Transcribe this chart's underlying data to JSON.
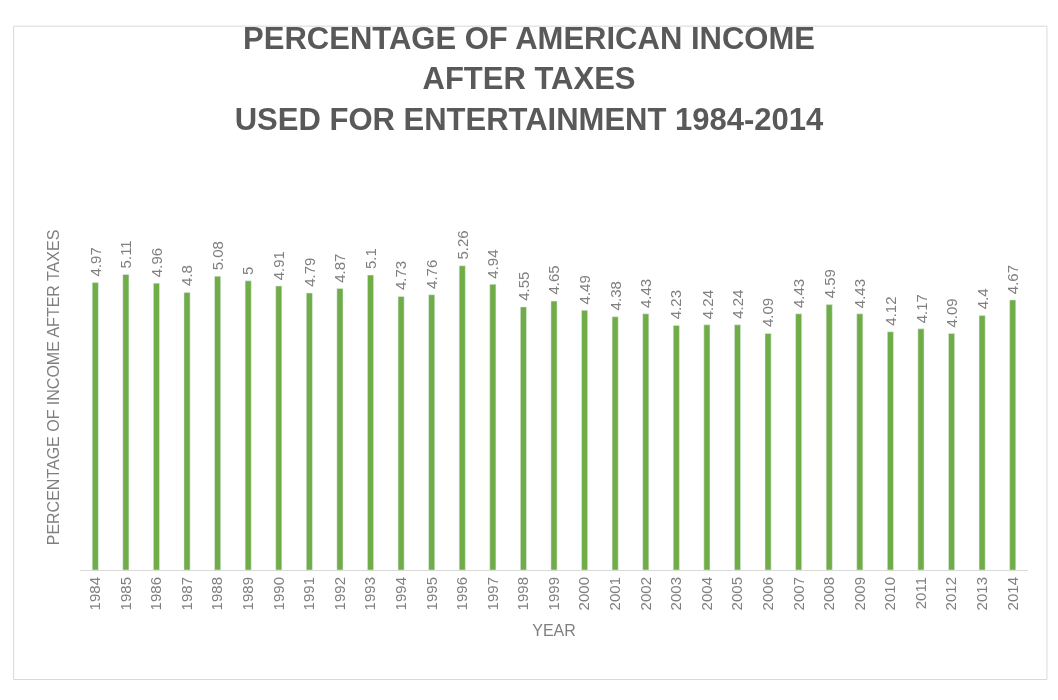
{
  "chart_data": {
    "type": "bar",
    "title": "PERCENTAGE OF AMERICAN INCOME\nAFTER TAXES\nUSED FOR ENTERTAINMENT 1984-2014",
    "xlabel": "YEAR",
    "ylabel": "PERCENTAGE OF INCOME AFTER TAXES",
    "categories": [
      "1984",
      "1985",
      "1986",
      "1987",
      "1988",
      "1989",
      "1990",
      "1991",
      "1992",
      "1993",
      "1994",
      "1995",
      "1996",
      "1997",
      "1998",
      "1999",
      "2000",
      "2001",
      "2002",
      "2003",
      "2004",
      "2005",
      "2006",
      "2007",
      "2008",
      "2009",
      "2010",
      "2011",
      "2012",
      "2013",
      "2014"
    ],
    "values": [
      4.97,
      5.11,
      4.96,
      4.8,
      5.08,
      5,
      4.91,
      4.79,
      4.87,
      5.1,
      4.73,
      4.76,
      5.26,
      4.94,
      4.55,
      4.65,
      4.49,
      4.38,
      4.43,
      4.23,
      4.24,
      4.24,
      4.09,
      4.43,
      4.59,
      4.43,
      4.12,
      4.17,
      4.09,
      4.4,
      4.67
    ],
    "color": "#70ad47",
    "data_labels": true,
    "tick_labels": "x"
  }
}
